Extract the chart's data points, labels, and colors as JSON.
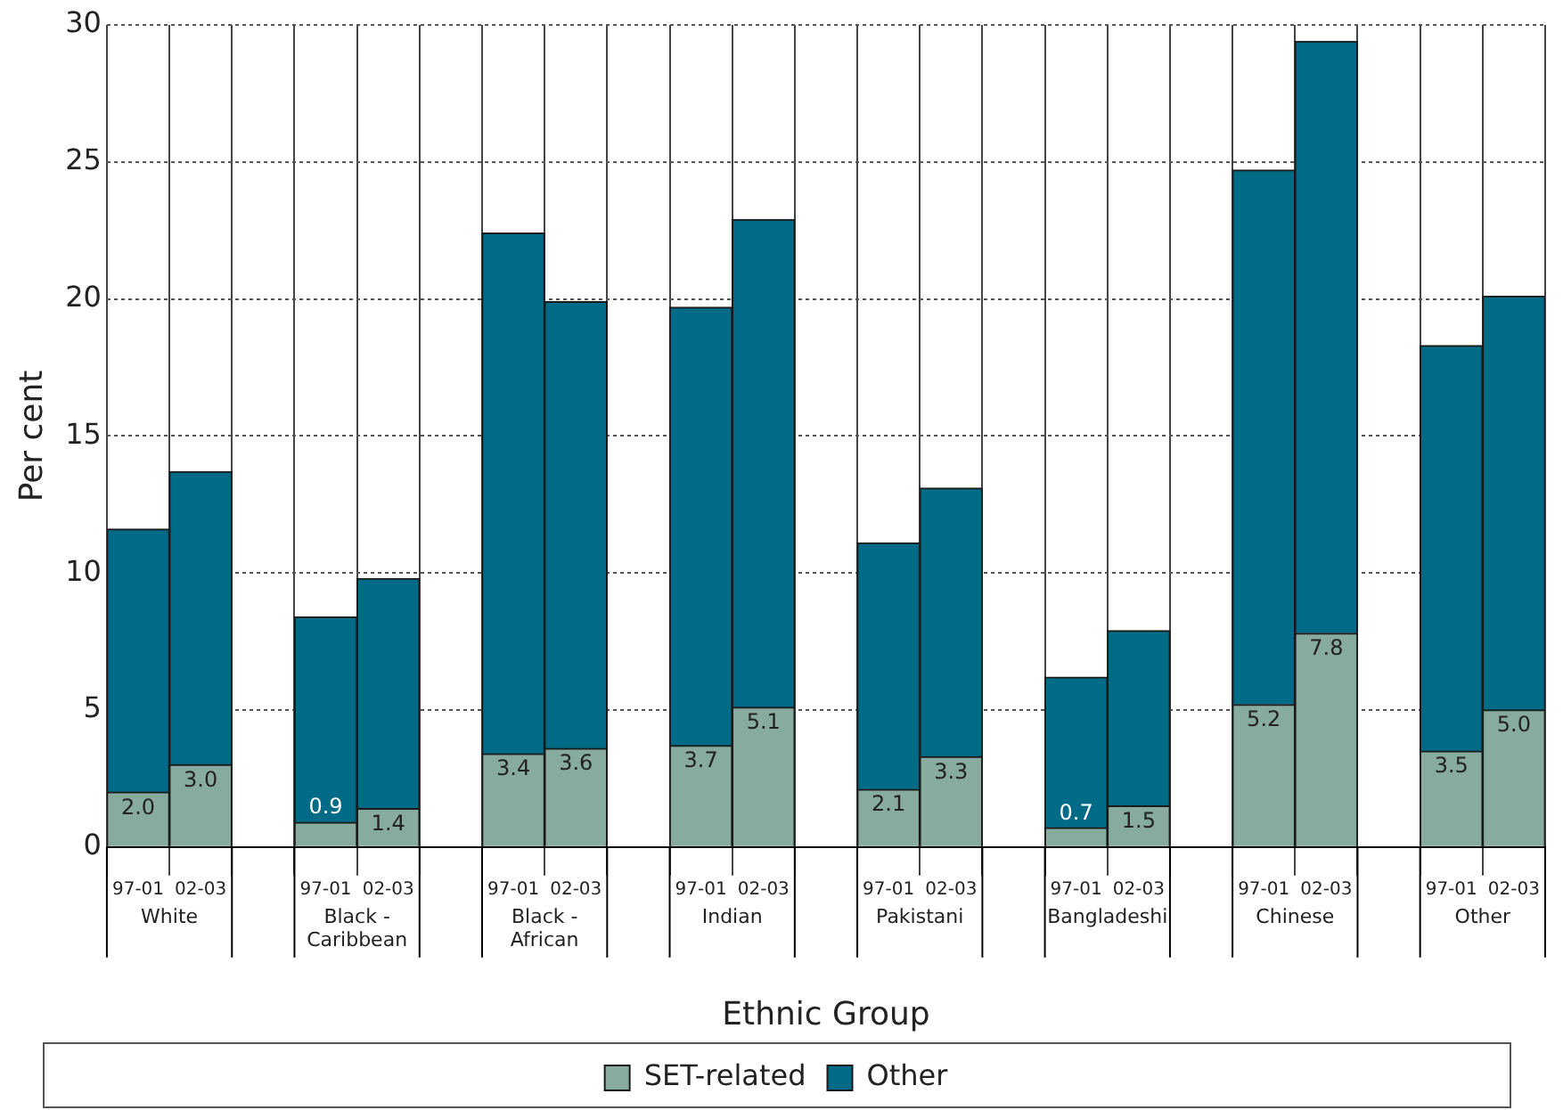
{
  "chart_data": {
    "type": "bar",
    "stacked": true,
    "xlabel": "Ethnic Group",
    "ylabel": "Per cent",
    "categories": [
      "97-01",
      "02-03",
      null,
      "97-01",
      "02-03",
      null,
      "97-01",
      "02-03",
      null,
      "97-01",
      "02-03",
      null,
      "97-01",
      "02-03",
      null,
      "97-01",
      "02-03",
      null,
      "97-01",
      "02-03",
      null,
      "97-01",
      "02-03"
    ],
    "annotations": [
      "White",
      "Black - Caribbean",
      "Black - African",
      "Indian",
      "Pakistani",
      "Bangladeshi",
      "Chinese",
      "Other"
    ],
    "series": [
      {
        "name": "SET-related",
        "color": "#88ab9f",
        "values": [
          2.0,
          3.0,
          null,
          0.9,
          1.4,
          null,
          3.4,
          3.6,
          null,
          3.7,
          5.1,
          null,
          2.1,
          3.3,
          null,
          0.7,
          1.5,
          null,
          5.2,
          7.8,
          null,
          3.5,
          5.0
        ],
        "value_labels": [
          "2.0",
          "3.0",
          null,
          "0.9",
          "1.4",
          null,
          "3.4",
          "3.6",
          null,
          "3.7",
          "5.1",
          null,
          "2.1",
          "3.3",
          null,
          "0.7",
          "1.5",
          null,
          "5.2",
          "7.8",
          null,
          "3.5",
          "5.0"
        ]
      },
      {
        "name": "Other",
        "color": "#006b86",
        "values": [
          9.6,
          10.7,
          null,
          7.5,
          8.4,
          null,
          19.0,
          16.3,
          null,
          16.0,
          17.8,
          null,
          9.0,
          9.8,
          null,
          5.5,
          6.4,
          null,
          19.5,
          21.6,
          null,
          14.8,
          15.1
        ]
      }
    ],
    "ylim": [
      0,
      30
    ],
    "yticks": [
      0,
      5,
      10,
      15,
      20,
      25,
      30
    ],
    "grid": true,
    "legend": "bottom"
  }
}
